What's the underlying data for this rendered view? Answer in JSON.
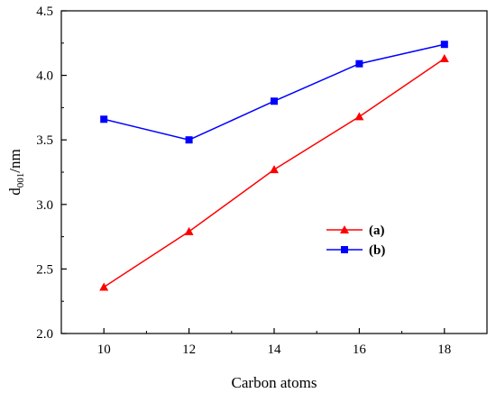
{
  "chart_data": {
    "type": "line",
    "xlabel": "Carbon atoms",
    "ylabel_main": "d",
    "ylabel_sub": "001",
    "ylabel_suffix": "/nm",
    "xlim": [
      9,
      19
    ],
    "ylim": [
      2.0,
      4.5
    ],
    "x_ticks": [
      10,
      12,
      14,
      16,
      18
    ],
    "y_ticks": [
      "2.0",
      "2.5",
      "3.0",
      "3.5",
      "4.0",
      "4.5"
    ],
    "x": [
      10,
      12,
      14,
      16,
      18
    ],
    "series": [
      {
        "name": "(a)",
        "color": "#ff0000",
        "marker": "triangle",
        "values": [
          2.36,
          2.79,
          3.27,
          3.68,
          4.13
        ]
      },
      {
        "name": "(b)",
        "color": "#0000ff",
        "marker": "square",
        "values": [
          3.66,
          3.5,
          3.8,
          4.09,
          4.24
        ]
      }
    ],
    "legend_position": "inside-right-middle",
    "grid": false
  }
}
